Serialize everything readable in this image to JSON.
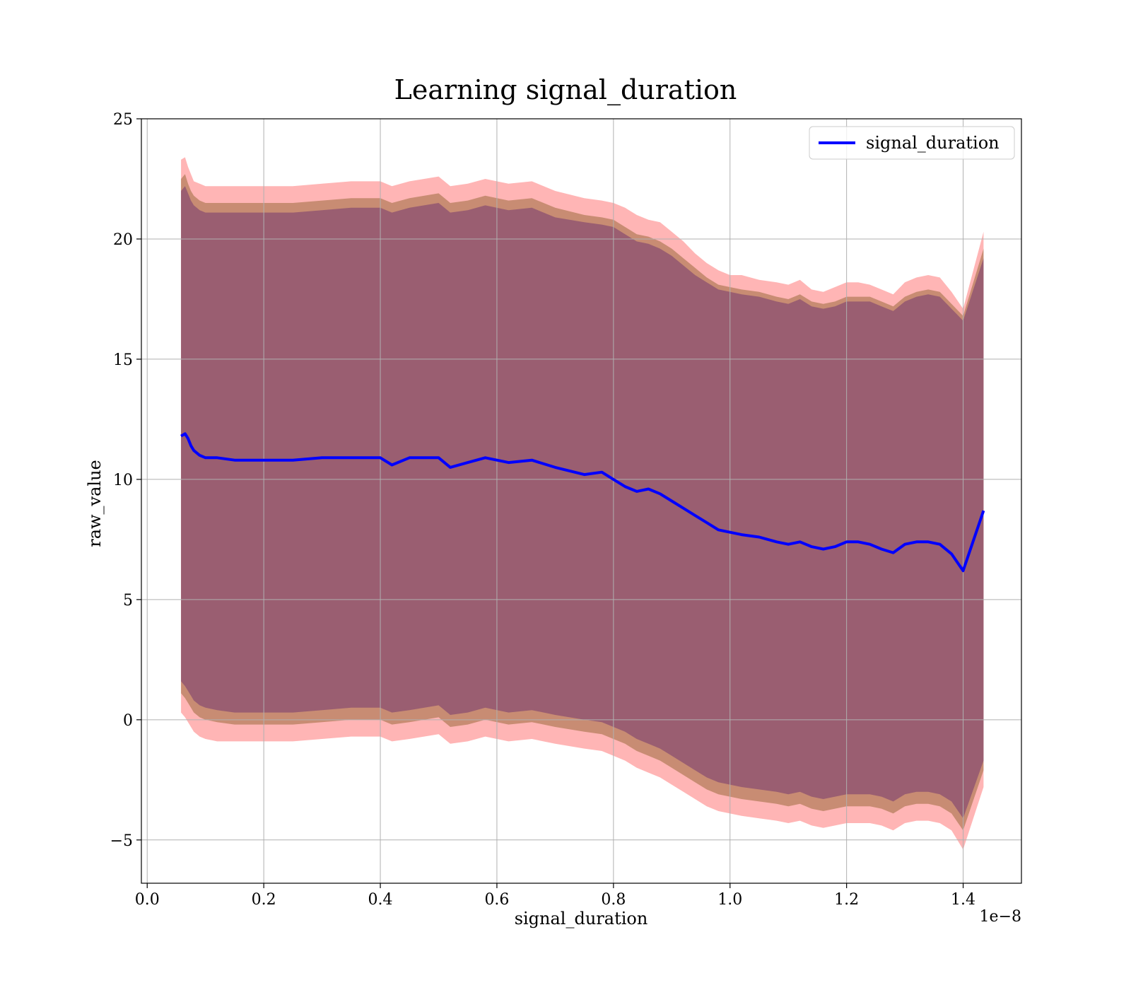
{
  "chart_data": {
    "type": "line",
    "title": "Learning signal_duration",
    "xlabel": "signal_duration",
    "ylabel": "raw_value",
    "x_offset_label": "1e−8",
    "xlim": [
      -0.01,
      1.5
    ],
    "ylim": [
      -6.8,
      25
    ],
    "x_ticks": [
      0.0,
      0.2,
      0.4,
      0.6,
      0.8,
      1.0,
      1.2,
      1.4
    ],
    "x_tick_labels": [
      "0.0",
      "0.2",
      "0.4",
      "0.6",
      "0.8",
      "1.0",
      "1.2",
      "1.4"
    ],
    "y_ticks": [
      -5,
      0,
      5,
      10,
      15,
      20,
      25
    ],
    "y_tick_labels": [
      "−5",
      "0",
      "5",
      "10",
      "15",
      "20",
      "25"
    ],
    "grid": true,
    "legend_position": "top-right",
    "series": [
      {
        "name": "signal_duration",
        "color": "#0000ff",
        "x": [
          0.058,
          0.065,
          0.07,
          0.075,
          0.08,
          0.09,
          0.1,
          0.12,
          0.15,
          0.2,
          0.25,
          0.3,
          0.35,
          0.4,
          0.42,
          0.45,
          0.5,
          0.52,
          0.55,
          0.58,
          0.62,
          0.66,
          0.7,
          0.75,
          0.78,
          0.8,
          0.82,
          0.84,
          0.86,
          0.88,
          0.9,
          0.92,
          0.94,
          0.96,
          0.98,
          1.0,
          1.02,
          1.05,
          1.08,
          1.1,
          1.12,
          1.14,
          1.16,
          1.18,
          1.2,
          1.22,
          1.24,
          1.26,
          1.28,
          1.3,
          1.32,
          1.34,
          1.36,
          1.38,
          1.4,
          1.435
        ],
        "mean": [
          11.8,
          11.9,
          11.7,
          11.4,
          11.2,
          11.0,
          10.9,
          10.9,
          10.8,
          10.8,
          10.8,
          10.9,
          10.9,
          10.9,
          10.6,
          10.9,
          10.9,
          10.5,
          10.7,
          10.9,
          10.7,
          10.8,
          10.5,
          10.2,
          10.3,
          10.0,
          9.7,
          9.5,
          9.6,
          9.4,
          9.1,
          8.8,
          8.5,
          8.2,
          7.9,
          7.8,
          7.7,
          7.6,
          7.4,
          7.3,
          7.4,
          7.2,
          7.1,
          7.2,
          7.4,
          7.4,
          7.3,
          7.1,
          6.95,
          7.3,
          7.4,
          7.4,
          7.3,
          6.9,
          6.2,
          8.7
        ],
        "bands": [
          {
            "color": "#ff6b6b",
            "opacity": 0.5,
            "upper": [
              23.3,
              23.4,
              23.0,
              22.7,
              22.4,
              22.3,
              22.2,
              22.2,
              22.2,
              22.2,
              22.2,
              22.3,
              22.4,
              22.4,
              22.2,
              22.4,
              22.6,
              22.2,
              22.3,
              22.5,
              22.3,
              22.4,
              22.0,
              21.7,
              21.6,
              21.5,
              21.3,
              21.0,
              20.8,
              20.7,
              20.3,
              19.9,
              19.4,
              19.0,
              18.7,
              18.5,
              18.5,
              18.3,
              18.2,
              18.1,
              18.3,
              17.9,
              17.8,
              18.0,
              18.2,
              18.2,
              18.1,
              17.9,
              17.7,
              18.2,
              18.4,
              18.5,
              18.4,
              17.8,
              17.1,
              20.3
            ],
            "lower": [
              0.3,
              0.1,
              -0.1,
              -0.3,
              -0.5,
              -0.7,
              -0.8,
              -0.9,
              -0.9,
              -0.9,
              -0.9,
              -0.8,
              -0.7,
              -0.7,
              -0.9,
              -0.8,
              -0.6,
              -1.0,
              -0.9,
              -0.7,
              -0.9,
              -0.8,
              -1.0,
              -1.2,
              -1.3,
              -1.5,
              -1.7,
              -2.0,
              -2.2,
              -2.4,
              -2.7,
              -3.0,
              -3.3,
              -3.6,
              -3.8,
              -3.9,
              -4.0,
              -4.1,
              -4.2,
              -4.3,
              -4.2,
              -4.4,
              -4.5,
              -4.4,
              -4.3,
              -4.3,
              -4.3,
              -4.4,
              -4.6,
              -4.3,
              -4.2,
              -4.2,
              -4.3,
              -4.6,
              -5.4,
              -2.8
            ]
          },
          {
            "color": "#9a6a3c",
            "opacity": 0.55,
            "upper": [
              22.5,
              22.7,
              22.3,
              22.0,
              21.8,
              21.6,
              21.5,
              21.5,
              21.5,
              21.5,
              21.5,
              21.6,
              21.7,
              21.7,
              21.5,
              21.7,
              21.9,
              21.5,
              21.6,
              21.8,
              21.6,
              21.7,
              21.3,
              21.0,
              20.9,
              20.8,
              20.5,
              20.2,
              20.1,
              19.9,
              19.6,
              19.2,
              18.8,
              18.4,
              18.1,
              18.0,
              17.9,
              17.8,
              17.6,
              17.5,
              17.7,
              17.4,
              17.3,
              17.4,
              17.6,
              17.6,
              17.6,
              17.4,
              17.2,
              17.6,
              17.8,
              17.9,
              17.8,
              17.3,
              16.8,
              19.6
            ],
            "lower": [
              1.1,
              0.9,
              0.7,
              0.5,
              0.3,
              0.1,
              0.0,
              -0.1,
              -0.2,
              -0.2,
              -0.2,
              -0.1,
              0.0,
              0.0,
              -0.2,
              -0.1,
              0.1,
              -0.3,
              -0.2,
              0.0,
              -0.2,
              -0.1,
              -0.3,
              -0.5,
              -0.6,
              -0.8,
              -1.0,
              -1.3,
              -1.5,
              -1.7,
              -2.0,
              -2.3,
              -2.6,
              -2.9,
              -3.1,
              -3.2,
              -3.3,
              -3.4,
              -3.5,
              -3.6,
              -3.5,
              -3.7,
              -3.8,
              -3.7,
              -3.6,
              -3.6,
              -3.6,
              -3.7,
              -3.9,
              -3.6,
              -3.5,
              -3.5,
              -3.6,
              -3.9,
              -4.6,
              -2.1
            ]
          },
          {
            "color": "#7b4070",
            "opacity": 0.6,
            "upper": [
              22.0,
              22.2,
              21.9,
              21.6,
              21.4,
              21.2,
              21.1,
              21.1,
              21.1,
              21.1,
              21.1,
              21.2,
              21.3,
              21.3,
              21.1,
              21.3,
              21.5,
              21.1,
              21.2,
              21.4,
              21.2,
              21.3,
              20.9,
              20.7,
              20.6,
              20.5,
              20.2,
              19.9,
              19.8,
              19.6,
              19.3,
              18.9,
              18.5,
              18.2,
              17.9,
              17.8,
              17.7,
              17.6,
              17.4,
              17.3,
              17.5,
              17.2,
              17.1,
              17.2,
              17.4,
              17.4,
              17.4,
              17.2,
              17.0,
              17.4,
              17.6,
              17.7,
              17.6,
              17.1,
              16.6,
              19.2
            ],
            "lower": [
              1.6,
              1.4,
              1.2,
              1.0,
              0.8,
              0.6,
              0.5,
              0.4,
              0.3,
              0.3,
              0.3,
              0.4,
              0.5,
              0.5,
              0.3,
              0.4,
              0.6,
              0.2,
              0.3,
              0.5,
              0.3,
              0.4,
              0.2,
              0.0,
              -0.1,
              -0.3,
              -0.5,
              -0.8,
              -1.0,
              -1.2,
              -1.5,
              -1.8,
              -2.1,
              -2.4,
              -2.6,
              -2.7,
              -2.8,
              -2.9,
              -3.0,
              -3.1,
              -3.0,
              -3.2,
              -3.3,
              -3.2,
              -3.1,
              -3.1,
              -3.1,
              -3.2,
              -3.4,
              -3.1,
              -3.0,
              -3.0,
              -3.1,
              -3.4,
              -4.1,
              -1.7
            ]
          }
        ]
      }
    ]
  }
}
